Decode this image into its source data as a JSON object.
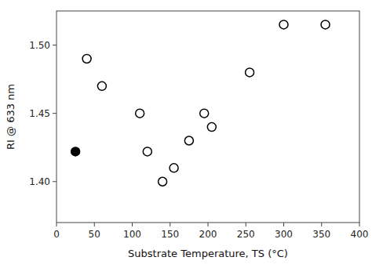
{
  "chart_data": {
    "type": "scatter",
    "xlabel": "Substrate Temperature, TS (°C)",
    "ylabel": "RI @ 633 nm",
    "xlim": [
      0,
      400
    ],
    "ylim": [
      1.37,
      1.525
    ],
    "xticks": [
      0,
      50,
      100,
      150,
      200,
      250,
      300,
      350,
      400
    ],
    "yticks": [
      {
        "value": 1.4,
        "label": "1.40"
      },
      1.45,
      {
        "value": 1.5,
        "label": "1.50"
      }
    ],
    "grid": false,
    "series": [
      {
        "color": "black",
        "marker": "open-circle",
        "x": [
          40,
          60,
          110,
          120,
          140,
          155,
          175,
          195,
          205,
          255,
          300,
          355
        ],
        "values": [
          1.49,
          1.47,
          1.45,
          1.422,
          1.4,
          1.41,
          1.43,
          1.45,
          1.44,
          1.48,
          1.515,
          1.515
        ]
      },
      {
        "color": "black",
        "marker": "circle",
        "x": [
          25
        ],
        "values": [
          1.422
        ]
      }
    ]
  }
}
